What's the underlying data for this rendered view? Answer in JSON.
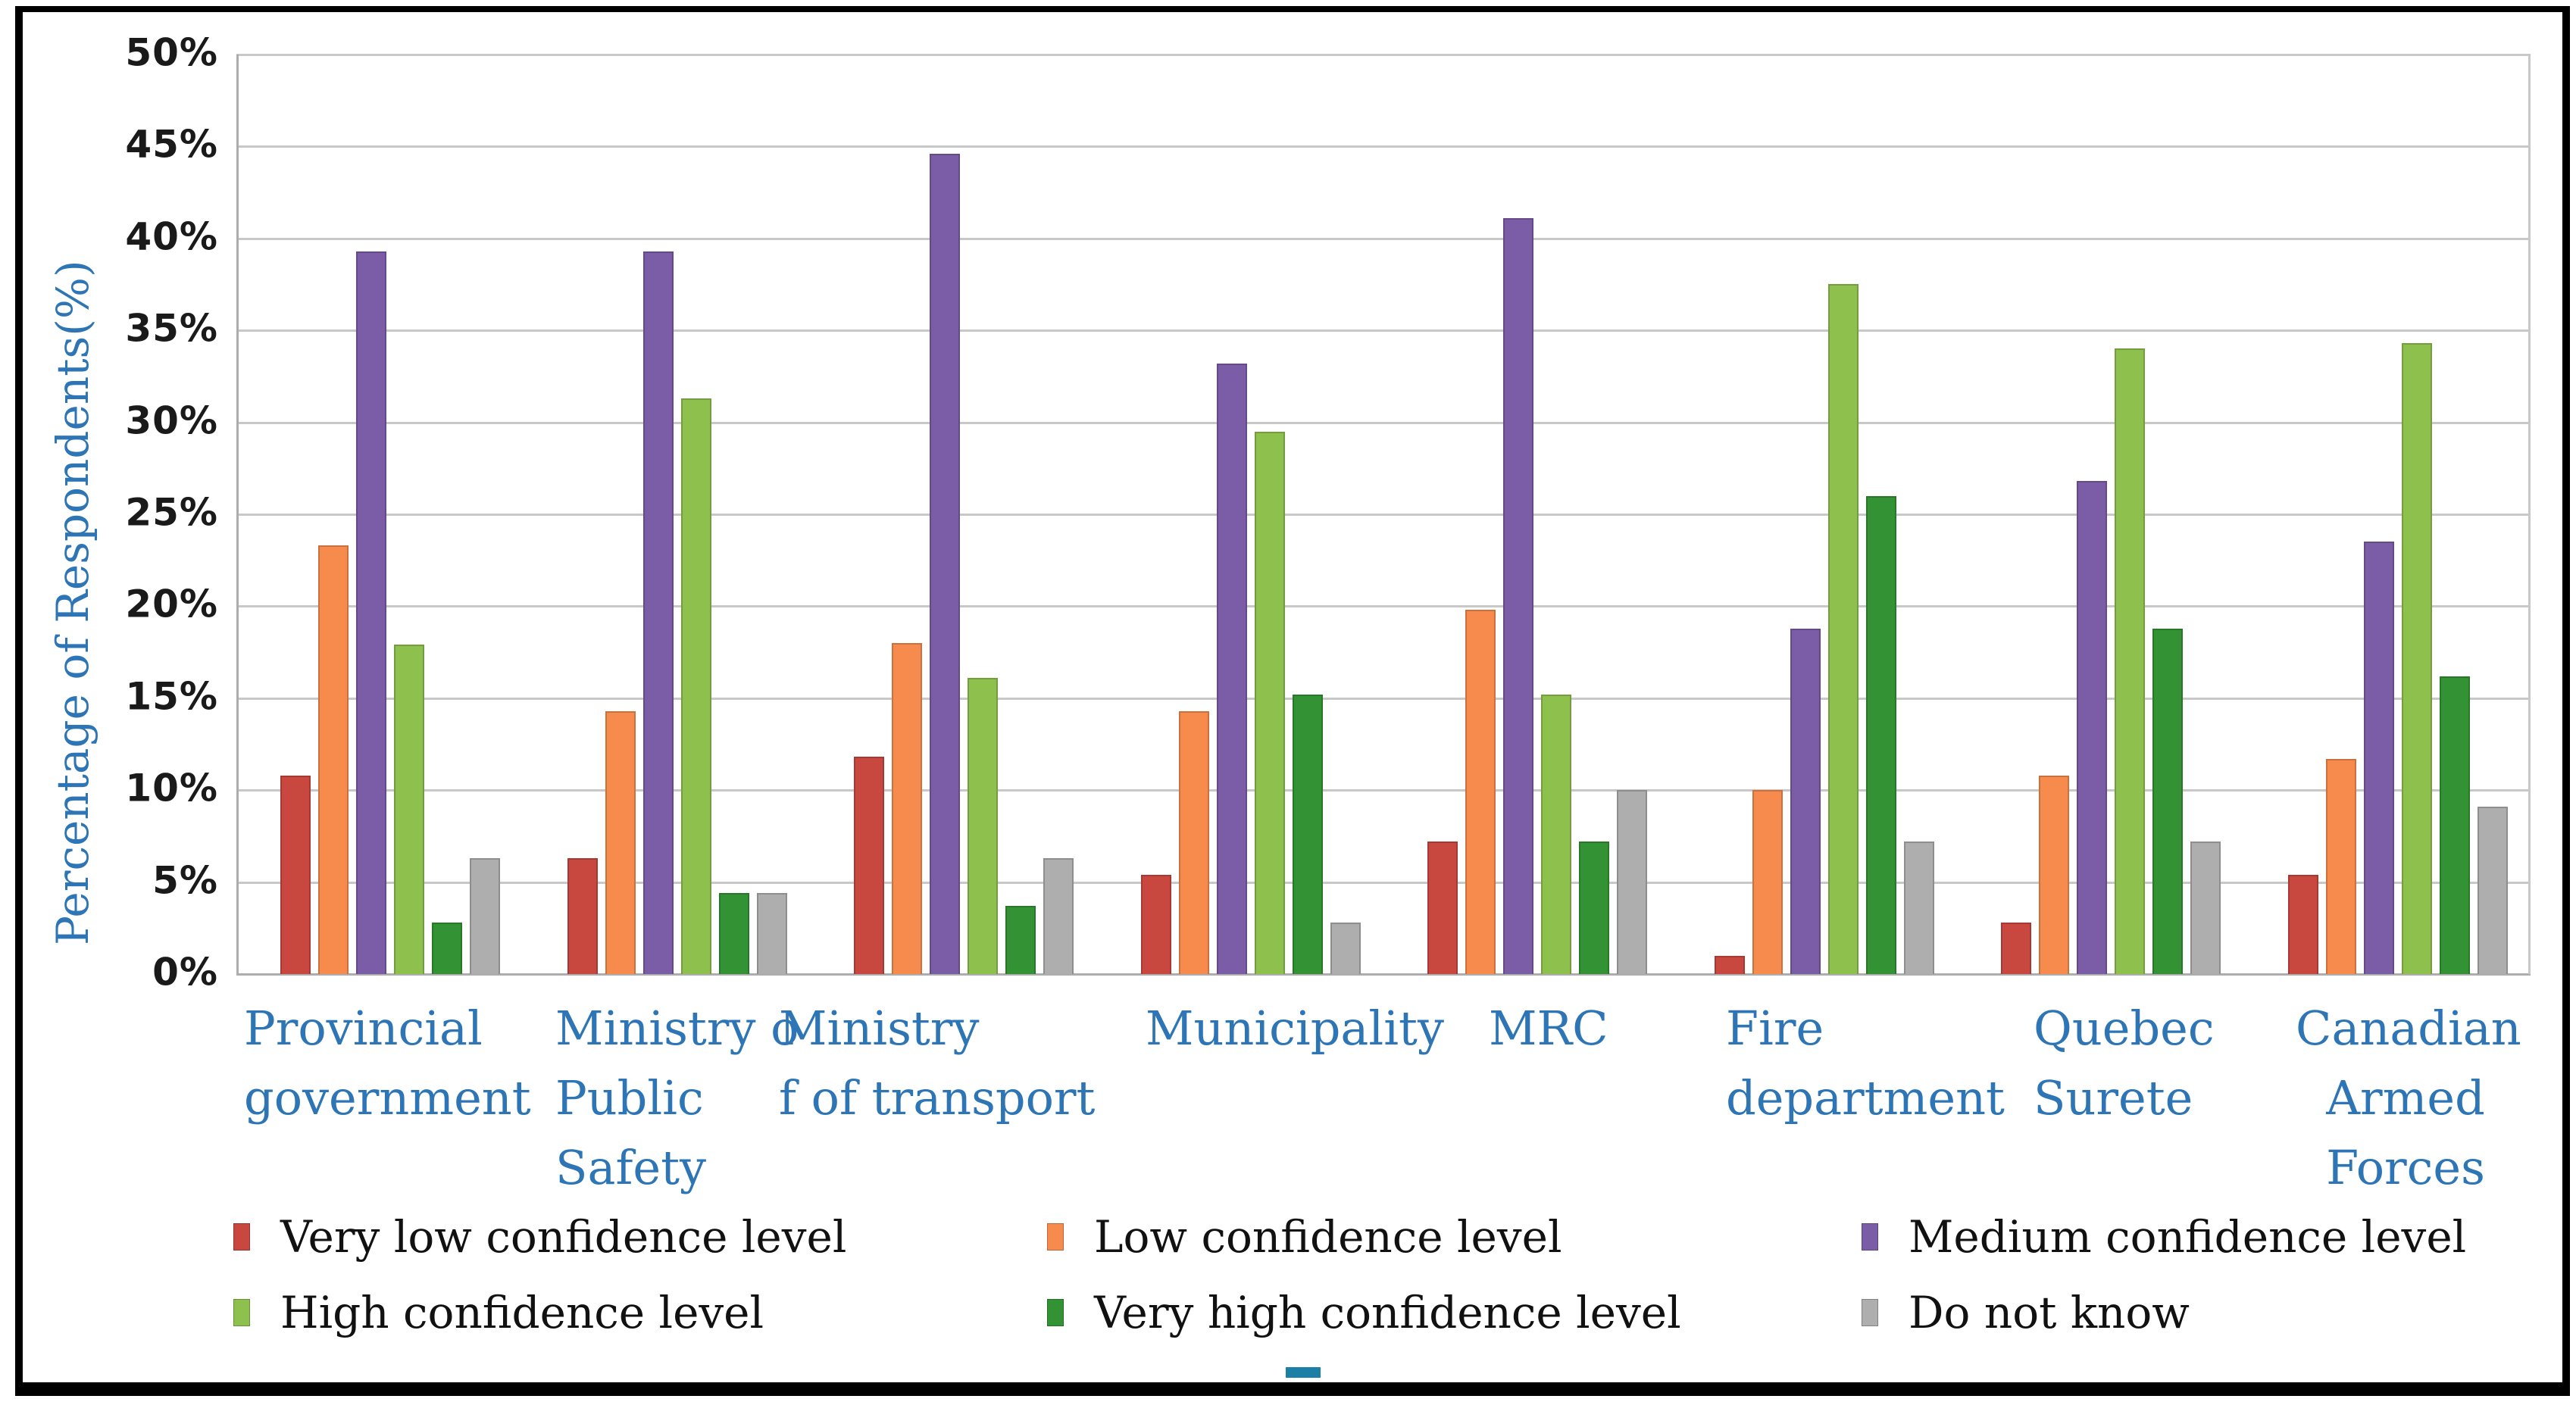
{
  "chart_data": {
    "type": "bar",
    "title": "",
    "xlabel": "",
    "ylabel": "Percentage of Respondents(%)",
    "ylim": [
      0,
      50
    ],
    "ytick_step": 5,
    "yticks": [
      "50%",
      "45%",
      "40%",
      "35%",
      "30%",
      "25%",
      "20%",
      "15%",
      "10%",
      "5%",
      "0%"
    ],
    "grid": true,
    "legend_position": "bottom",
    "categories": [
      "Provincial government",
      "Ministry of Public Safety",
      "Ministry of transport",
      "Municipality",
      "MRC",
      "Fire department",
      "Quebec Surete",
      "Canadian Armed Forces"
    ],
    "category_label_lines": [
      [
        "Provincial",
        "government"
      ],
      [
        "Ministry o",
        "Public",
        "Safety"
      ],
      [
        "Ministry",
        "f of transport"
      ],
      [
        "Municipality"
      ],
      [
        "MRC"
      ],
      [
        "Fire",
        "department"
      ],
      [
        "Quebec",
        "Surete"
      ],
      [
        "Canadian",
        "Armed",
        "Forces"
      ]
    ],
    "series": [
      {
        "name": "Very low confidence level",
        "color": "#C8473F",
        "values": [
          10.8,
          6.3,
          11.8,
          5.4,
          7.2,
          1.0,
          2.8,
          5.4
        ]
      },
      {
        "name": "Low confidence level",
        "color": "#F78B4E",
        "values": [
          23.3,
          14.3,
          18.0,
          14.3,
          19.8,
          10.0,
          10.8,
          11.7
        ]
      },
      {
        "name": "Medium confidence level",
        "color": "#7B5CA6",
        "values": [
          39.3,
          39.3,
          44.6,
          33.2,
          41.1,
          18.8,
          26.8,
          23.5
        ]
      },
      {
        "name": "High confidence level",
        "color": "#8DC04D",
        "values": [
          17.9,
          31.3,
          16.1,
          29.5,
          15.2,
          37.5,
          34.0,
          34.3
        ]
      },
      {
        "name": "Very high confidence level",
        "color": "#339233",
        "values": [
          2.8,
          4.4,
          3.7,
          15.2,
          7.2,
          26.0,
          18.8,
          16.2
        ]
      },
      {
        "name": "Do not know",
        "color": "#AFAEAF",
        "values": [
          6.3,
          4.4,
          6.3,
          2.8,
          10.0,
          7.2,
          7.2,
          9.1
        ]
      }
    ]
  },
  "colors": {
    "axis_text": "#2E75B6",
    "tick_text": "#1a1a1a",
    "grid": "#C8C8C8",
    "axis_line": "#ADADAD",
    "frame_border": "#000000",
    "background": "#FFFFFF",
    "stray_marker_teal": "#1B7FA6"
  }
}
